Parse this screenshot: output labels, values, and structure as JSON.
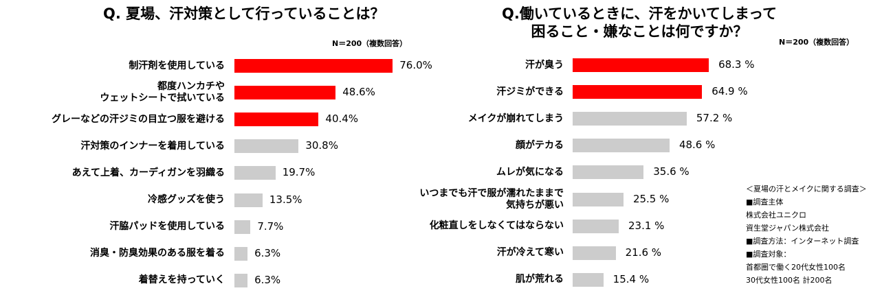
{
  "left": {
    "title": "Q.  夏場、汗対策として行っていることは？",
    "note": "N＝200（複数回答）",
    "chart_data": {
      "type": "bar",
      "orientation": "horizontal",
      "categories": [
        "制汗剤を使用している",
        "都度ハンカチや\nウェットシートで拭いている",
        "グレーなどの汗ジミの目立つ服を避ける",
        "汗対策のインナーを着用している",
        "あえて上着、カーディガンを羽織る",
        "冷感グッズを使う",
        "汗脇パッドを使用している",
        "消臭・防臭効果のある服を着る",
        "着替えを持っていく"
      ],
      "values": [
        76.0,
        48.6,
        40.4,
        30.8,
        19.7,
        13.5,
        7.7,
        6.3,
        6.3
      ],
      "value_labels": [
        "76.0%",
        "48.6%",
        "40.4%",
        "30.8%",
        "19.7%",
        "13.5%",
        "7.7%",
        "6.3%",
        "6.3%"
      ],
      "unit": "%",
      "highlight_count": 3,
      "colors": {
        "highlight": "#ff0000",
        "normal": "#cccccc"
      }
    }
  },
  "right": {
    "title_line1": "Q.働いているときに、汗をかいてしまって",
    "title_line2": "困ること・嫌なことは何ですか？",
    "note": "N＝200（複数回答）",
    "chart_data": {
      "type": "bar",
      "orientation": "horizontal",
      "categories": [
        "汗が臭う",
        "汗ジミができる",
        "メイクが崩れてしまう",
        "顔がテカる",
        "ムレが気になる",
        "いつまでも汗で服が濡れたままで\n気持ちが悪い",
        "化粧直しをしなくてはならない",
        "汗が冷えて寒い",
        "肌が荒れる"
      ],
      "values": [
        68.3,
        64.9,
        57.2,
        48.6,
        35.6,
        25.5,
        23.1,
        21.6,
        15.4
      ],
      "value_labels": [
        "68.3 %",
        "64.9 %",
        "57.2 %",
        "48.6 %",
        "35.6 %",
        "25.5 %",
        "23.1 %",
        "21.6 %",
        "15.4 %"
      ],
      "unit": "%",
      "highlight_count": 2,
      "colors": {
        "highlight": "#ff0000",
        "normal": "#cccccc"
      }
    }
  },
  "info": {
    "lines": [
      "＜夏場の汗とメイクに関する調査＞",
      "■調査主体",
      "株式会社ユニクロ",
      "資生堂ジャパン株式会社",
      "■調査方法：インターネット調査",
      "■調査対象：",
      "首都圏で働く20代女性100名",
      "30代女性100名  計200名"
    ]
  }
}
